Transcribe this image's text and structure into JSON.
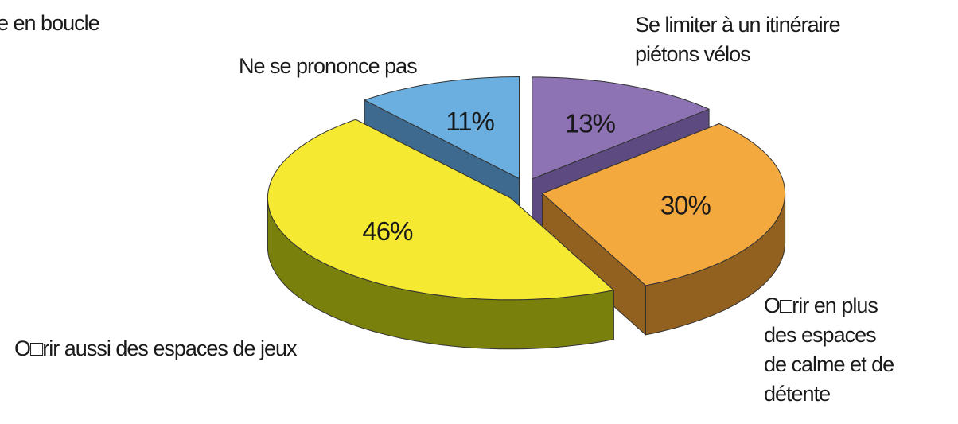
{
  "chart_data": {
    "type": "pie3d",
    "annotation": "e en boucle",
    "categories": [
      "Se limiter à un itinéraire\npiétons vélos",
      "O□rir en plus\ndes espaces\nde calme et de\ndétente",
      "O□rir aussi des espaces de jeux",
      "Ne se prononce pas"
    ],
    "values": [
      13,
      30,
      46,
      11
    ],
    "value_labels": [
      "13%",
      "30%",
      "46%",
      "11%"
    ],
    "colors": [
      "#8e73b4",
      "#f4a93f",
      "#f5e931",
      "#6aafdf"
    ],
    "side_colors": [
      "#5c4a80",
      "#93611f",
      "#7a800c",
      "#3d6a8e"
    ]
  }
}
